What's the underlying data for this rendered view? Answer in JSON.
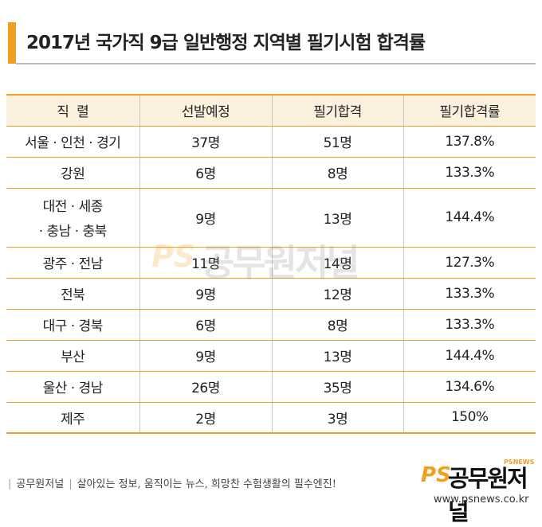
{
  "title": "2017년 국가직 9급 일반행정 지역별 필기시험 합격률",
  "table": {
    "headers": [
      "직  렬",
      "선발예정",
      "필기합격",
      "필기합격률"
    ],
    "rows": [
      {
        "region": "서울 · 인천 · 경기",
        "planned": "37명",
        "passed": "51명",
        "rate": "137.8%"
      },
      {
        "region": "강원",
        "planned": "6명",
        "passed": "8명",
        "rate": "133.3%"
      },
      {
        "region_line1": "대전 · 세종",
        "region_line2": "· 충남 · 충북",
        "planned": "9명",
        "passed": "13명",
        "rate": "144.4%"
      },
      {
        "region": "광주 · 전남",
        "planned": "11명",
        "passed": "14명",
        "rate": "127.3%"
      },
      {
        "region": "전북",
        "planned": "9명",
        "passed": "12명",
        "rate": "133.3%"
      },
      {
        "region": "대구 · 경북",
        "planned": "6명",
        "passed": "8명",
        "rate": "133.3%"
      },
      {
        "region": "부산",
        "planned": "9명",
        "passed": "13명",
        "rate": "144.4%"
      },
      {
        "region": "울산 · 경남",
        "planned": "26명",
        "passed": "35명",
        "rate": "134.6%"
      },
      {
        "region": "제주",
        "planned": "2명",
        "passed": "3명",
        "rate": "150%"
      }
    ]
  },
  "watermark": {
    "ps": "PS",
    "name": "공무원저널"
  },
  "footer": {
    "brand": "공무원저널",
    "slogan": "살아있는 정보, 움직이는 뉴스, 희망찬 수험생활의 필수엔진!",
    "logo_ps": "PS",
    "logo_name": "공무원저널",
    "logo_news": "PSNEWS",
    "url": "www.psnews.co.kr"
  },
  "colors": {
    "accent": "#f0a020",
    "header_bg": "#fbf1de"
  }
}
